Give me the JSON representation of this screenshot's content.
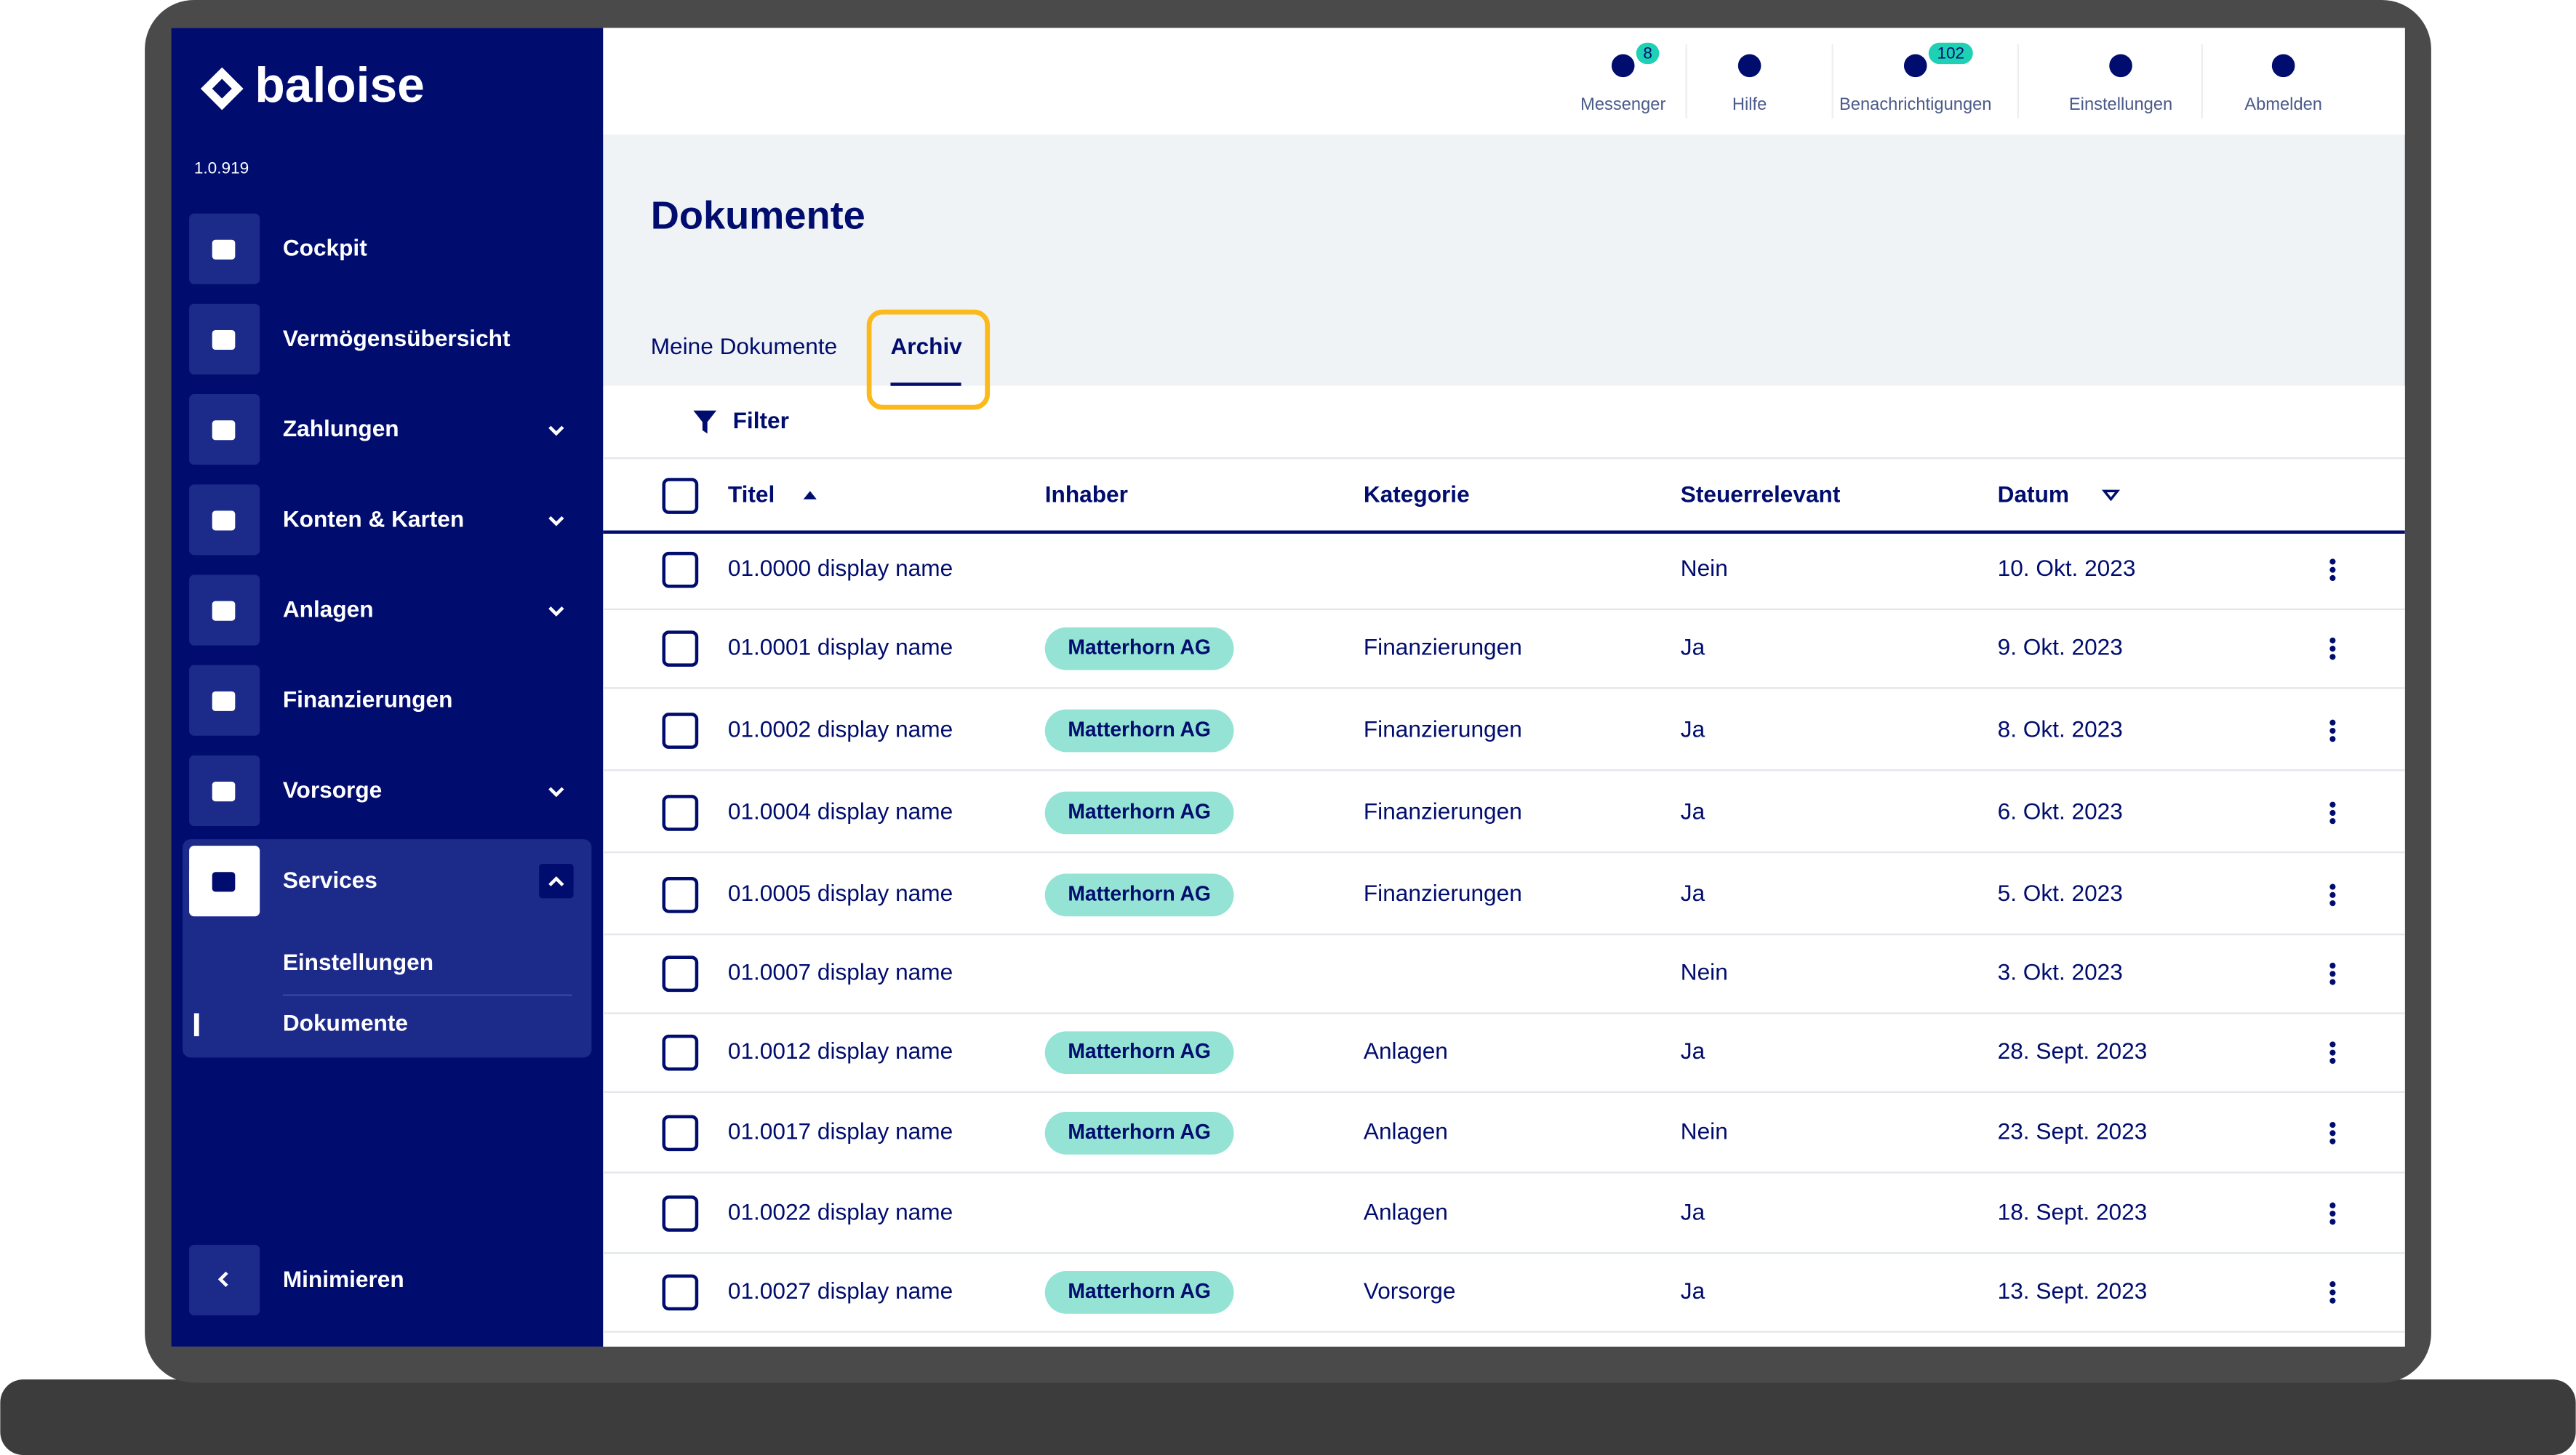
{
  "sidebar": {
    "brand": "baloise",
    "version": "1.0.919",
    "nav": [
      {
        "label": "Cockpit",
        "expandable": false
      },
      {
        "label": "Vermögensübersicht",
        "expandable": false
      },
      {
        "label": "Zahlungen",
        "expandable": true
      },
      {
        "label": "Konten & Karten",
        "expandable": true
      },
      {
        "label": "Anlagen",
        "expandable": true
      },
      {
        "label": "Finanzierungen",
        "expandable": false
      },
      {
        "label": "Vorsorge",
        "expandable": true
      },
      {
        "label": "Services",
        "expandable": true,
        "children": [
          "Einstellungen",
          "Dokumente"
        ]
      }
    ],
    "minimize": "Minimieren"
  },
  "topbar": {
    "actions": [
      {
        "label": "Messenger",
        "badge": "8"
      },
      {
        "label": "Hilfe"
      },
      {
        "label": "Benachrichtigungen",
        "badge": "102"
      },
      {
        "label": "Einstellungen"
      },
      {
        "label": "Abmelden"
      }
    ]
  },
  "page": {
    "title": "Dokumente",
    "tabs": [
      "Meine Dokumente",
      "Archiv"
    ],
    "active_tab": 1,
    "filter": "Filter"
  },
  "table": {
    "columns": [
      "Titel",
      "Inhaber",
      "Kategorie",
      "Steuerrelevant",
      "Datum"
    ],
    "rows": [
      [
        "01.0000 display name",
        null,
        null,
        "Nein",
        "10. Okt. 2023"
      ],
      [
        "01.0001 display name",
        "Matterhorn AG",
        "Finanzierungen",
        "Ja",
        "9. Okt. 2023"
      ],
      [
        "01.0002 display name",
        "Matterhorn AG",
        "Finanzierungen",
        "Ja",
        "8. Okt. 2023"
      ],
      [
        "01.0004 display name",
        "Matterhorn AG",
        "Finanzierungen",
        "Ja",
        "6. Okt. 2023"
      ],
      [
        "01.0005 display name",
        "Matterhorn AG",
        "Finanzierungen",
        "Ja",
        "5. Okt. 2023"
      ],
      [
        "01.0007 display name",
        null,
        null,
        "Nein",
        "3. Okt. 2023"
      ],
      [
        "01.0012 display name",
        "Matterhorn AG",
        "Anlagen",
        "Ja",
        "28. Sept. 2023"
      ],
      [
        "01.0017 display name",
        "Matterhorn AG",
        "Anlagen",
        "Nein",
        "23. Sept. 2023"
      ],
      [
        "01.0022 display name",
        null,
        "Anlagen",
        "Ja",
        "18. Sept. 2023"
      ],
      [
        "01.0027 display name",
        "Matterhorn AG",
        "Vorsorge",
        "Ja",
        "13. Sept. 2023"
      ]
    ]
  }
}
